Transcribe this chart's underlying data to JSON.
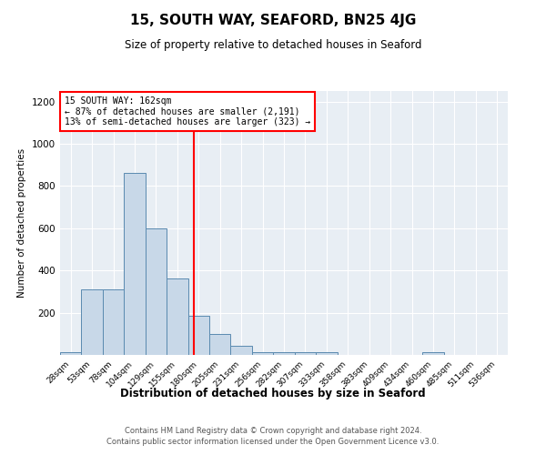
{
  "title": "15, SOUTH WAY, SEAFORD, BN25 4JG",
  "subtitle": "Size of property relative to detached houses in Seaford",
  "xlabel": "Distribution of detached houses by size in Seaford",
  "ylabel": "Number of detached properties",
  "bin_labels": [
    "28sqm",
    "53sqm",
    "78sqm",
    "104sqm",
    "129sqm",
    "155sqm",
    "180sqm",
    "205sqm",
    "231sqm",
    "256sqm",
    "282sqm",
    "307sqm",
    "333sqm",
    "358sqm",
    "383sqm",
    "409sqm",
    "434sqm",
    "460sqm",
    "485sqm",
    "511sqm",
    "536sqm"
  ],
  "bar_values": [
    15,
    310,
    310,
    860,
    600,
    360,
    185,
    100,
    45,
    15,
    15,
    15,
    15,
    0,
    0,
    0,
    0,
    15,
    0,
    0,
    0
  ],
  "bar_color": "#c8d8e8",
  "bar_edge_color": "#5a8ab0",
  "annotation_text": "15 SOUTH WAY: 162sqm\n← 87% of detached houses are smaller (2,191)\n13% of semi-detached houses are larger (323) →",
  "annotation_box_color": "white",
  "annotation_box_edge_color": "red",
  "line_color": "red",
  "line_x_index": 5.78,
  "ylim": [
    0,
    1250
  ],
  "yticks": [
    0,
    200,
    400,
    600,
    800,
    1000,
    1200
  ],
  "footer_line1": "Contains HM Land Registry data © Crown copyright and database right 2024.",
  "footer_line2": "Contains public sector information licensed under the Open Government Licence v3.0.",
  "plot_bg_color": "#e8eef4",
  "fig_bg_color": "#ffffff"
}
